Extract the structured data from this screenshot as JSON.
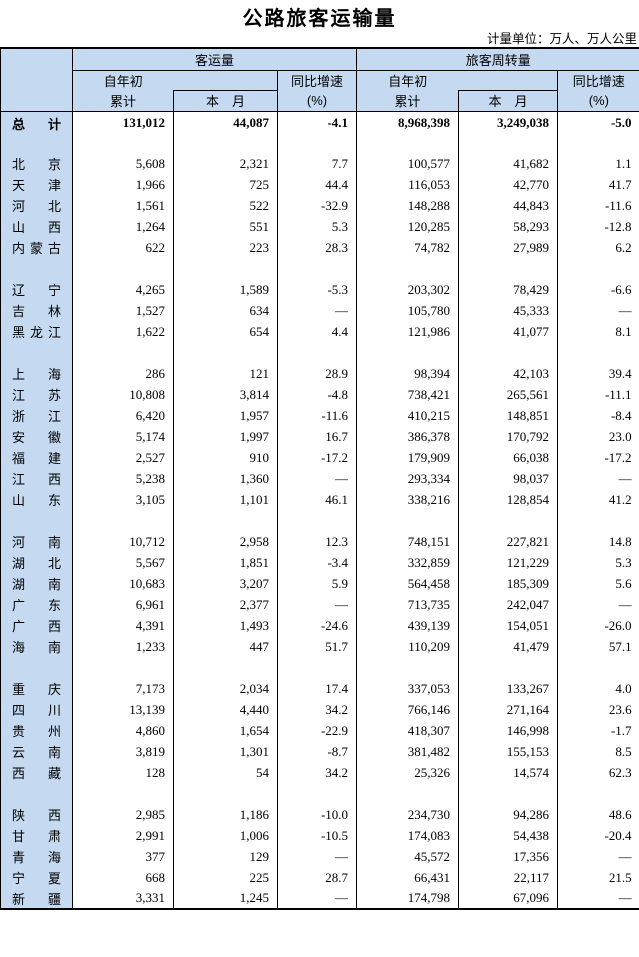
{
  "title": "公路旅客运输量",
  "unit_note": "计量单位：万人、万人公里",
  "colors": {
    "header_bg": "#c5d9f1",
    "border": "#000000",
    "text": "#000000",
    "background": "#ffffff"
  },
  "table": {
    "group_headers": {
      "passenger_volume": "客运量",
      "passenger_turnover": "旅客周转量"
    },
    "sub_headers": {
      "cumulative_top": "自年初",
      "cumulative_bottom": "累计",
      "month": "本　月",
      "yoy_top": "同比增速",
      "yoy_bottom": "(%)"
    },
    "total": {
      "name": "总计",
      "values": [
        "131,012",
        "44,087",
        "-4.1",
        "8,968,398",
        "3,249,038",
        "-5.0"
      ]
    },
    "groups": [
      {
        "rows": [
          {
            "name": "北京",
            "values": [
              "5,608",
              "2,321",
              "7.7",
              "100,577",
              "41,682",
              "1.1"
            ]
          },
          {
            "name": "天津",
            "values": [
              "1,966",
              "725",
              "44.4",
              "116,053",
              "42,770",
              "41.7"
            ]
          },
          {
            "name": "河北",
            "values": [
              "1,561",
              "522",
              "-32.9",
              "148,288",
              "44,843",
              "-11.6"
            ]
          },
          {
            "name": "山西",
            "values": [
              "1,264",
              "551",
              "5.3",
              "120,285",
              "58,293",
              "-12.8"
            ]
          },
          {
            "name": "内蒙古",
            "values": [
              "622",
              "223",
              "28.3",
              "74,782",
              "27,989",
              "6.2"
            ]
          }
        ]
      },
      {
        "rows": [
          {
            "name": "辽宁",
            "values": [
              "4,265",
              "1,589",
              "-5.3",
              "203,302",
              "78,429",
              "-6.6"
            ]
          },
          {
            "name": "吉林",
            "values": [
              "1,527",
              "634",
              "—",
              "105,780",
              "45,333",
              "—"
            ]
          },
          {
            "name": "黑龙江",
            "values": [
              "1,622",
              "654",
              "4.4",
              "121,986",
              "41,077",
              "8.1"
            ]
          }
        ]
      },
      {
        "rows": [
          {
            "name": "上海",
            "values": [
              "286",
              "121",
              "28.9",
              "98,394",
              "42,103",
              "39.4"
            ]
          },
          {
            "name": "江苏",
            "values": [
              "10,808",
              "3,814",
              "-4.8",
              "738,421",
              "265,561",
              "-11.1"
            ]
          },
          {
            "name": "浙江",
            "values": [
              "6,420",
              "1,957",
              "-11.6",
              "410,215",
              "148,851",
              "-8.4"
            ]
          },
          {
            "name": "安徽",
            "values": [
              "5,174",
              "1,997",
              "16.7",
              "386,378",
              "170,792",
              "23.0"
            ]
          },
          {
            "name": "福建",
            "values": [
              "2,527",
              "910",
              "-17.2",
              "179,909",
              "66,038",
              "-17.2"
            ]
          },
          {
            "name": "江西",
            "values": [
              "5,238",
              "1,360",
              "—",
              "293,334",
              "98,037",
              "—"
            ]
          },
          {
            "name": "山东",
            "values": [
              "3,105",
              "1,101",
              "46.1",
              "338,216",
              "128,854",
              "41.2"
            ]
          }
        ]
      },
      {
        "rows": [
          {
            "name": "河南",
            "values": [
              "10,712",
              "2,958",
              "12.3",
              "748,151",
              "227,821",
              "14.8"
            ]
          },
          {
            "name": "湖北",
            "values": [
              "5,567",
              "1,851",
              "-3.4",
              "332,859",
              "121,229",
              "5.3"
            ]
          },
          {
            "name": "湖南",
            "values": [
              "10,683",
              "3,207",
              "5.9",
              "564,458",
              "185,309",
              "5.6"
            ]
          },
          {
            "name": "广东",
            "values": [
              "6,961",
              "2,377",
              "—",
              "713,735",
              "242,047",
              "—"
            ]
          },
          {
            "name": "广西",
            "values": [
              "4,391",
              "1,493",
              "-24.6",
              "439,139",
              "154,051",
              "-26.0"
            ]
          },
          {
            "name": "海南",
            "values": [
              "1,233",
              "447",
              "51.7",
              "110,209",
              "41,479",
              "57.1"
            ]
          }
        ]
      },
      {
        "rows": [
          {
            "name": "重庆",
            "values": [
              "7,173",
              "2,034",
              "17.4",
              "337,053",
              "133,267",
              "4.0"
            ]
          },
          {
            "name": "四川",
            "values": [
              "13,139",
              "4,440",
              "34.2",
              "766,146",
              "271,164",
              "23.6"
            ]
          },
          {
            "name": "贵州",
            "values": [
              "4,860",
              "1,654",
              "-22.9",
              "418,307",
              "146,998",
              "-1.7"
            ]
          },
          {
            "name": "云南",
            "values": [
              "3,819",
              "1,301",
              "-8.7",
              "381,482",
              "155,153",
              "8.5"
            ]
          },
          {
            "name": "西藏",
            "values": [
              "128",
              "54",
              "34.2",
              "25,326",
              "14,574",
              "62.3"
            ]
          }
        ]
      },
      {
        "rows": [
          {
            "name": "陕西",
            "values": [
              "2,985",
              "1,186",
              "-10.0",
              "234,730",
              "94,286",
              "48.6"
            ]
          },
          {
            "name": "甘肃",
            "values": [
              "2,991",
              "1,006",
              "-10.5",
              "174,083",
              "54,438",
              "-20.4"
            ]
          },
          {
            "name": "青海",
            "values": [
              "377",
              "129",
              "—",
              "45,572",
              "17,356",
              "—"
            ]
          },
          {
            "name": "宁夏",
            "values": [
              "668",
              "225",
              "28.7",
              "66,431",
              "22,117",
              "21.5"
            ]
          },
          {
            "name": "新疆",
            "values": [
              "3,331",
              "1,245",
              "—",
              "174,798",
              "67,096",
              "—"
            ]
          }
        ]
      }
    ]
  }
}
